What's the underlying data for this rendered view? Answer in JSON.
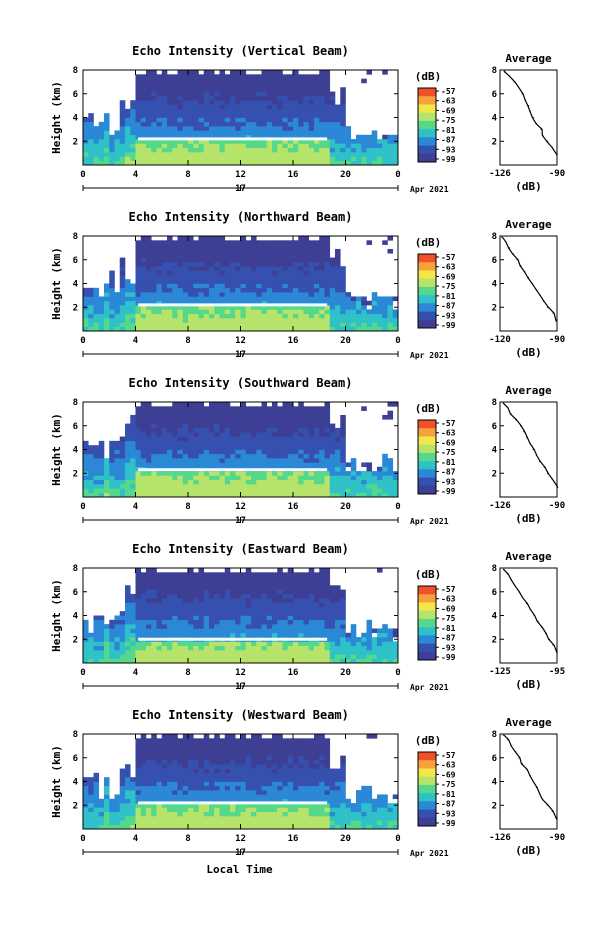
{
  "figure": {
    "xlabel_bottom": "Local Time",
    "date_label": "Apr 2021",
    "day_label": "17"
  },
  "colorbar": {
    "unit": "(dB)",
    "ticks": [
      "-57",
      "-63",
      "-69",
      "-75",
      "-81",
      "-87",
      "-93",
      "-99"
    ],
    "colors": [
      "#f0502a",
      "#f7a13a",
      "#f2e64a",
      "#b6e46a",
      "#56d88a",
      "#2fc1c8",
      "#2a88d6",
      "#3650b0",
      "#3c3f93"
    ]
  },
  "chart_data": [
    {
      "type": "heatmap",
      "title": "Echo Intensity (Vertical Beam)",
      "ylabel": "Height (km)",
      "x_ticks": [
        "0",
        "4",
        "8",
        "12",
        "16",
        "20",
        "0"
      ],
      "xlim": [
        0,
        24
      ],
      "y_ticks": [
        "8",
        "6",
        "4",
        "2"
      ],
      "ylim": [
        0,
        8
      ],
      "layer_height_km": 2.2,
      "profile": {
        "title": "Average",
        "xlabel": "(dB)",
        "x_ticks": [
          "-126",
          "-90"
        ],
        "xlim": [
          -126,
          -90
        ],
        "y_ticks": [
          "8",
          "6",
          "4",
          "2"
        ],
        "ylim": [
          0,
          8
        ],
        "height_km": [
          0.8,
          1.5,
          2.0,
          2.5,
          3.0,
          3.5,
          4.0,
          4.5,
          5.0,
          5.5,
          6.0,
          6.5,
          7.0,
          7.5,
          7.9
        ],
        "db": [
          -90,
          -93,
          -96,
          -99,
          -100,
          -103,
          -105,
          -107,
          -108,
          -110,
          -112,
          -114,
          -117,
          -120,
          -123
        ]
      }
    },
    {
      "type": "heatmap",
      "title": "Echo Intensity (Northward Beam)",
      "ylabel": "Height (km)",
      "x_ticks": [
        "0",
        "4",
        "8",
        "12",
        "16",
        "20",
        "0"
      ],
      "xlim": [
        0,
        24
      ],
      "y_ticks": [
        "8",
        "6",
        "4",
        "2"
      ],
      "ylim": [
        0,
        8
      ],
      "layer_height_km": 2.2,
      "profile": {
        "title": "Average",
        "xlabel": "(dB)",
        "x_ticks": [
          "-120",
          "-90"
        ],
        "xlim": [
          -120,
          -90
        ],
        "y_ticks": [
          "8",
          "6",
          "4",
          "2"
        ],
        "ylim": [
          0,
          8
        ],
        "height_km": [
          0.8,
          1.5,
          2.0,
          2.5,
          3.0,
          3.5,
          4.0,
          4.5,
          5.0,
          5.5,
          6.0,
          6.5,
          7.0,
          7.5,
          7.9
        ],
        "db": [
          -90,
          -92,
          -95,
          -97,
          -99,
          -101,
          -103,
          -105,
          -107,
          -109,
          -111,
          -113,
          -115,
          -117,
          -119
        ]
      }
    },
    {
      "type": "heatmap",
      "title": "Echo Intensity (Southward Beam)",
      "ylabel": "Height (km)",
      "x_ticks": [
        "0",
        "4",
        "8",
        "12",
        "16",
        "20",
        "0"
      ],
      "xlim": [
        0,
        24
      ],
      "y_ticks": [
        "8",
        "6",
        "4",
        "2"
      ],
      "ylim": [
        0,
        8
      ],
      "layer_height_km": 2.3,
      "profile": {
        "title": "Average",
        "xlabel": "(dB)",
        "x_ticks": [
          "-126",
          "-90"
        ],
        "xlim": [
          -126,
          -90
        ],
        "y_ticks": [
          "8",
          "6",
          "4",
          "2"
        ],
        "ylim": [
          0,
          8
        ],
        "height_km": [
          0.8,
          1.5,
          2.0,
          2.5,
          3.0,
          3.5,
          4.0,
          4.5,
          5.0,
          5.5,
          6.0,
          6.5,
          7.0,
          7.5,
          7.9
        ],
        "db": [
          -90,
          -93,
          -96,
          -98,
          -101,
          -103,
          -105,
          -107,
          -109,
          -111,
          -113,
          -116,
          -119,
          -121,
          -124
        ]
      }
    },
    {
      "type": "heatmap",
      "title": "Echo Intensity (Eastward Beam)",
      "ylabel": "Height (km)",
      "x_ticks": [
        "0",
        "4",
        "8",
        "12",
        "16",
        "20",
        "0"
      ],
      "xlim": [
        0,
        24
      ],
      "y_ticks": [
        "8",
        "6",
        "4",
        "2"
      ],
      "ylim": [
        0,
        8
      ],
      "layer_height_km": 2.0,
      "profile": {
        "title": "Average",
        "xlabel": "(dB)",
        "x_ticks": [
          "-125",
          "-95"
        ],
        "xlim": [
          -125,
          -95
        ],
        "y_ticks": [
          "8",
          "6",
          "4",
          "2"
        ],
        "ylim": [
          0,
          8
        ],
        "height_km": [
          0.8,
          1.5,
          2.0,
          2.5,
          3.0,
          3.5,
          4.0,
          4.5,
          5.0,
          5.5,
          6.0,
          6.5,
          7.0,
          7.5,
          7.9
        ],
        "db": [
          -95,
          -97,
          -99,
          -101,
          -103,
          -105,
          -107,
          -109,
          -111,
          -113,
          -115,
          -117,
          -119,
          -121,
          -123
        ]
      }
    },
    {
      "type": "heatmap",
      "title": "Echo Intensity (Westward Beam)",
      "ylabel": "Height (km)",
      "x_ticks": [
        "0",
        "4",
        "8",
        "12",
        "16",
        "20",
        "0"
      ],
      "xlim": [
        0,
        24
      ],
      "y_ticks": [
        "8",
        "6",
        "4",
        "2"
      ],
      "ylim": [
        0,
        8
      ],
      "layer_height_km": 2.2,
      "profile": {
        "title": "Average",
        "xlabel": "(dB)",
        "x_ticks": [
          "-126",
          "-90"
        ],
        "xlim": [
          -126,
          -90
        ],
        "y_ticks": [
          "8",
          "6",
          "4",
          "2"
        ],
        "ylim": [
          0,
          8
        ],
        "height_km": [
          0.8,
          1.5,
          2.0,
          2.5,
          3.0,
          3.5,
          4.0,
          4.5,
          5.0,
          5.5,
          6.0,
          6.5,
          7.0,
          7.5,
          7.9
        ],
        "db": [
          -90,
          -93,
          -96,
          -99,
          -101,
          -103,
          -105,
          -107,
          -109,
          -112,
          -114,
          -116,
          -119,
          -121,
          -124
        ]
      }
    }
  ]
}
